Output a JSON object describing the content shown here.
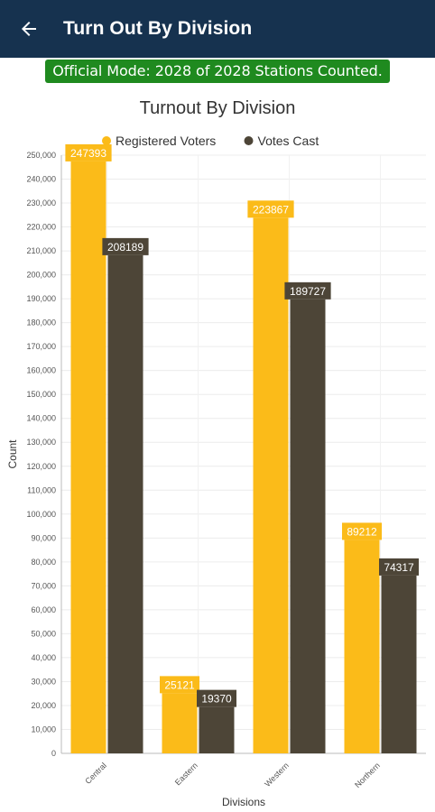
{
  "header": {
    "title": "Turn Out By Division",
    "back_icon": "arrow-left-icon"
  },
  "status": {
    "text": "Official Mode: 2028 of 2028 Stations Counted."
  },
  "colors": {
    "appbar": "#16324f",
    "status_bg": "#1f8a1f",
    "registered": "#fbbb19",
    "votes": "#4d4537"
  },
  "chart_data": {
    "type": "bar",
    "title": "Turnout By Division",
    "xlabel": "Divisions",
    "ylabel": "Count",
    "legend_position": "top",
    "categories": [
      "Central",
      "Eastern",
      "Western",
      "Northern"
    ],
    "series": [
      {
        "name": "Registered Voters",
        "color": "#fbbb19",
        "values": [
          247393,
          25121,
          223867,
          89212
        ]
      },
      {
        "name": "Votes Cast",
        "color": "#4d4537",
        "values": [
          208189,
          19370,
          189727,
          74317
        ]
      }
    ],
    "ylim": [
      0,
      250000
    ],
    "ytick_step": 10000,
    "grid": true
  }
}
